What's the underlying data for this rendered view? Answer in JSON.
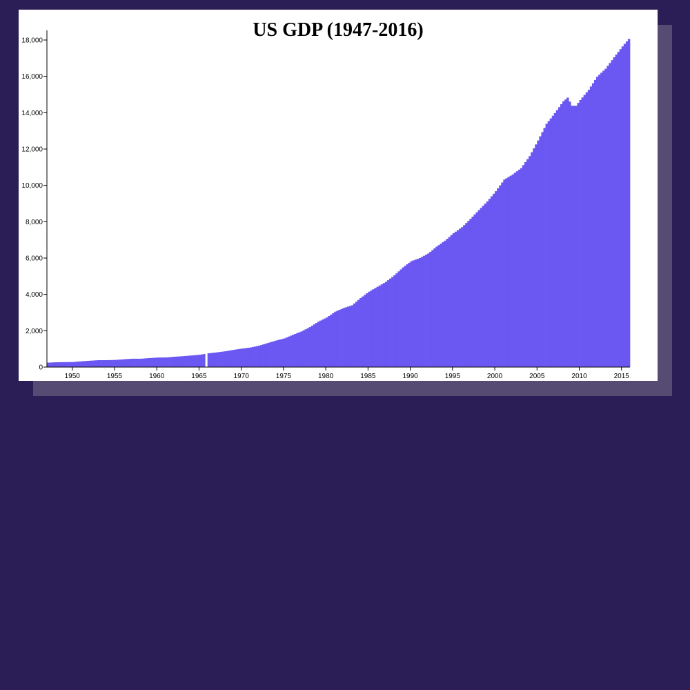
{
  "colors": {
    "page_background": "#2b1e57",
    "card_background": "#ffffff",
    "card_shadow": "#554b73",
    "bar_fill": "#6b57f2",
    "highlight_bar": "#ffffff"
  },
  "chart_data": {
    "type": "bar",
    "title": "US GDP (1947-2016)",
    "xlabel": "",
    "ylabel": "",
    "xlim": [
      1947.0,
      2015.75
    ],
    "ylim": [
      0,
      18000
    ],
    "grid": false,
    "legend": "none",
    "frequency": "quarterly",
    "x_ticks": [
      "1950",
      "1955",
      "1960",
      "1965",
      "1970",
      "1975",
      "1980",
      "1985",
      "1990",
      "1995",
      "2000",
      "2005",
      "2010",
      "2015"
    ],
    "y_ticks": [
      "0",
      "2,000",
      "4,000",
      "6,000",
      "8,000",
      "10,000",
      "12,000",
      "14,000",
      "16,000",
      "18,000"
    ],
    "highlighted_bar_x": 1965.75,
    "anchor_points": [
      [
        1947.0,
        243
      ],
      [
        1948.0,
        265
      ],
      [
        1949.0,
        272
      ],
      [
        1950.0,
        280
      ],
      [
        1951.0,
        320
      ],
      [
        1952.0,
        350
      ],
      [
        1953.0,
        380
      ],
      [
        1954.0,
        380
      ],
      [
        1955.0,
        395
      ],
      [
        1956.0,
        430
      ],
      [
        1957.0,
        460
      ],
      [
        1958.0,
        460
      ],
      [
        1959.0,
        495
      ],
      [
        1960.0,
        525
      ],
      [
        1961.0,
        530
      ],
      [
        1962.0,
        570
      ],
      [
        1963.0,
        600
      ],
      [
        1964.0,
        640
      ],
      [
        1965.0,
        680
      ],
      [
        1966.0,
        760
      ],
      [
        1967.0,
        810
      ],
      [
        1968.0,
        870
      ],
      [
        1969.0,
        950
      ],
      [
        1970.0,
        1020
      ],
      [
        1971.0,
        1080
      ],
      [
        1972.0,
        1180
      ],
      [
        1973.0,
        1320
      ],
      [
        1974.0,
        1460
      ],
      [
        1975.0,
        1580
      ],
      [
        1976.0,
        1780
      ],
      [
        1977.0,
        1960
      ],
      [
        1978.0,
        2200
      ],
      [
        1979.0,
        2500
      ],
      [
        1980.0,
        2730
      ],
      [
        1981.0,
        3050
      ],
      [
        1982.0,
        3250
      ],
      [
        1983.0,
        3400
      ],
      [
        1984.0,
        3800
      ],
      [
        1985.0,
        4150
      ],
      [
        1986.0,
        4420
      ],
      [
        1987.0,
        4690
      ],
      [
        1988.0,
        5050
      ],
      [
        1989.0,
        5480
      ],
      [
        1990.0,
        5830
      ],
      [
        1991.0,
        6000
      ],
      [
        1992.0,
        6250
      ],
      [
        1993.0,
        6630
      ],
      [
        1994.0,
        6960
      ],
      [
        1995.0,
        7370
      ],
      [
        1996.0,
        7700
      ],
      [
        1997.0,
        8160
      ],
      [
        1998.0,
        8640
      ],
      [
        1999.0,
        9120
      ],
      [
        2000.0,
        9680
      ],
      [
        2001.0,
        10320
      ],
      [
        2002.0,
        10600
      ],
      [
        2003.0,
        10950
      ],
      [
        2004.0,
        11610
      ],
      [
        2005.0,
        12470
      ],
      [
        2006.0,
        13390
      ],
      [
        2007.0,
        13980
      ],
      [
        2008.0,
        14630
      ],
      [
        2008.5,
        14830
      ],
      [
        2009.0,
        14380
      ],
      [
        2009.5,
        14380
      ],
      [
        2010.0,
        14700
      ],
      [
        2011.0,
        15260
      ],
      [
        2012.0,
        15980
      ],
      [
        2013.0,
        16420
      ],
      [
        2014.0,
        17050
      ],
      [
        2015.0,
        17650
      ],
      [
        2015.75,
        18060
      ]
    ]
  }
}
